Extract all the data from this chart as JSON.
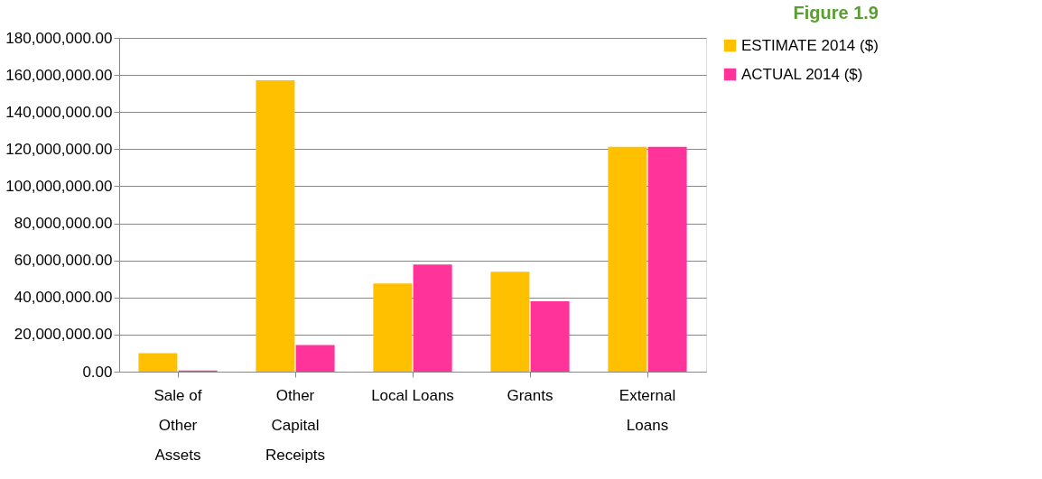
{
  "chart_data": {
    "type": "bar",
    "title": "Figure 1.9",
    "categories": [
      "Sale of Other Assets",
      "Other Capital Receipts",
      "Local Loans",
      "Grants",
      "External Loans"
    ],
    "series": [
      {
        "name": "ESTIMATE 2014 ($)",
        "color": "#ffc000",
        "values": [
          10000000,
          157100000,
          47600000,
          53900000,
          121300000
        ]
      },
      {
        "name": "ACTUAL 2014 ($)",
        "color": "#ff3399",
        "values": [
          600000,
          14300000,
          57800000,
          38000000,
          121300000
        ]
      }
    ],
    "ylim": [
      0,
      180000000
    ],
    "yticks": [
      {
        "value": 0,
        "label": "0.00"
      },
      {
        "value": 20000000,
        "label": "20,000,000.00"
      },
      {
        "value": 40000000,
        "label": "40,000,000.00"
      },
      {
        "value": 60000000,
        "label": "60,000,000.00"
      },
      {
        "value": 80000000,
        "label": "80,000,000.00"
      },
      {
        "value": 100000000,
        "label": "100,000,000.00"
      },
      {
        "value": 120000000,
        "label": "120,000,000.00"
      },
      {
        "value": 140000000,
        "label": "140,000,000.00"
      },
      {
        "value": 160000000,
        "label": "160,000,000.00"
      },
      {
        "value": 180000000,
        "label": "180,000,000.00"
      }
    ],
    "grid": "y",
    "legend": "right"
  }
}
